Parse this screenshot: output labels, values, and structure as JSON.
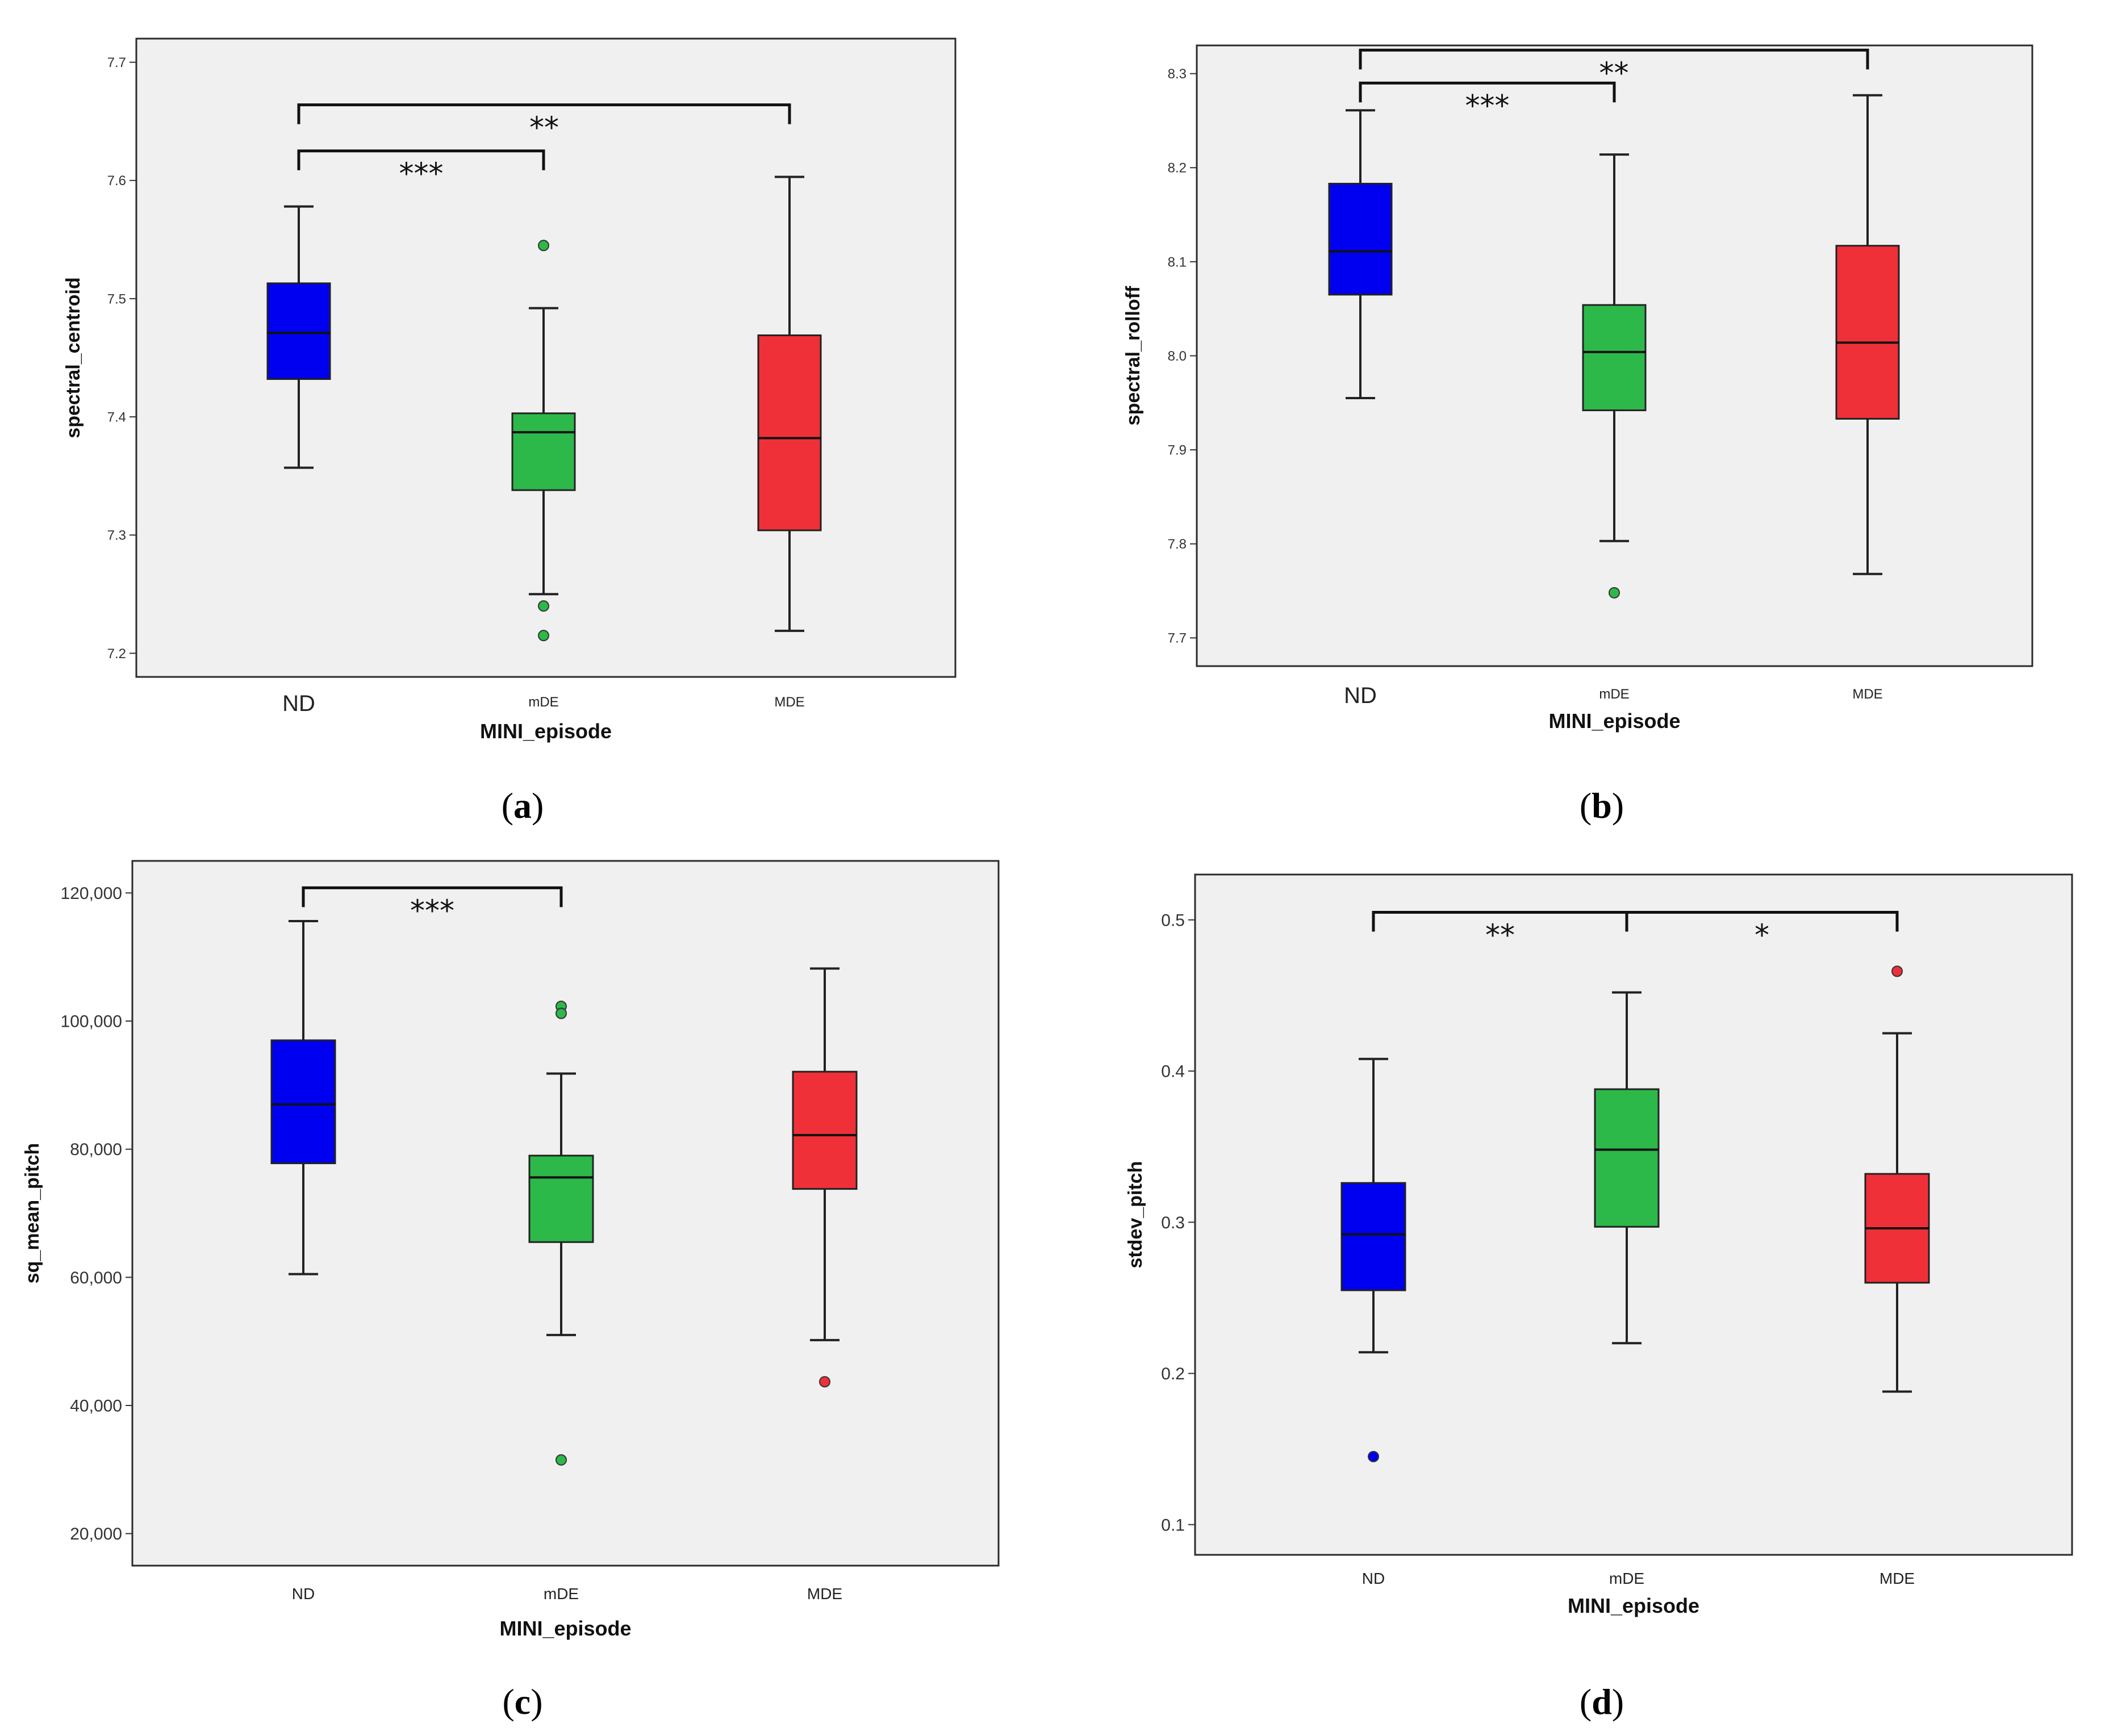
{
  "colors": {
    "ND": "#0000f0",
    "mDE": "#2db84a",
    "MDE": "#ef3038",
    "panel_bg": "#f0f0f0"
  },
  "chart_data": [
    {
      "type": "box",
      "caption_letter": "a",
      "caption_open": "(",
      "caption_close": ")",
      "xlabel": "MINI_episode",
      "ylabel": "spectral_centroid",
      "ylim": [
        7.18,
        7.72
      ],
      "yticks": [
        7.2,
        7.3,
        7.4,
        7.5,
        7.6,
        7.7
      ],
      "ytick_labels": [
        "7.2",
        "7.3",
        "7.4",
        "7.5",
        "7.6",
        "7.7"
      ],
      "categories": [
        "ND",
        "mDE",
        "MDE"
      ],
      "boxes": [
        {
          "min": 7.357,
          "q1": 7.432,
          "median": 7.471,
          "q3": 7.513,
          "max": 7.578,
          "outliers": []
        },
        {
          "min": 7.25,
          "q1": 7.338,
          "median": 7.387,
          "q3": 7.403,
          "max": 7.492,
          "outliers": [
            7.545,
            7.24,
            7.215
          ]
        },
        {
          "min": 7.219,
          "q1": 7.304,
          "median": 7.382,
          "q3": 7.469,
          "max": 7.603,
          "outliers": []
        }
      ],
      "brackets": [
        {
          "from": 0,
          "to": 1,
          "y": 7.625,
          "label": "***"
        },
        {
          "from": 0,
          "to": 2,
          "y": 7.664,
          "label": "**"
        }
      ]
    },
    {
      "type": "box",
      "caption_letter": "b",
      "caption_open": "(",
      "caption_close": ")",
      "xlabel": "MINI_episode",
      "ylabel": "spectral_rolloff",
      "ylim": [
        7.67,
        8.33
      ],
      "yticks": [
        7.7,
        7.8,
        7.9,
        8.0,
        8.1,
        8.2,
        8.3
      ],
      "ytick_labels": [
        "7.7",
        "7.8",
        "7.9",
        "8.0",
        "8.1",
        "8.2",
        "8.3"
      ],
      "categories": [
        "ND",
        "mDE",
        "MDE"
      ],
      "boxes": [
        {
          "min": 7.955,
          "q1": 8.065,
          "median": 8.111,
          "q3": 8.183,
          "max": 8.261,
          "outliers": []
        },
        {
          "min": 7.803,
          "q1": 7.942,
          "median": 8.004,
          "q3": 8.054,
          "max": 8.214,
          "outliers": [
            7.748
          ]
        },
        {
          "min": 7.768,
          "q1": 7.933,
          "median": 8.014,
          "q3": 8.117,
          "max": 8.277,
          "outliers": []
        }
      ],
      "brackets": [
        {
          "from": 0,
          "to": 1,
          "y": 8.29,
          "label": "***"
        },
        {
          "from": 0,
          "to": 2,
          "y": 8.325,
          "label": "**"
        }
      ]
    },
    {
      "type": "box",
      "caption_letter": "c",
      "caption_open": "(",
      "caption_close": ")",
      "xlabel": "MINI_episode",
      "ylabel": "sq_mean_pitch",
      "ylim": [
        15000,
        125000
      ],
      "yticks": [
        20000,
        40000,
        60000,
        80000,
        100000,
        120000
      ],
      "ytick_labels": [
        "20,000",
        "40,000",
        "60,000",
        "80,000",
        "100,000",
        "120,000"
      ],
      "categories": [
        "ND",
        "mDE",
        "MDE"
      ],
      "boxes": [
        {
          "min": 60500,
          "q1": 77800,
          "median": 87000,
          "q3": 97000,
          "max": 115600,
          "outliers": []
        },
        {
          "min": 51000,
          "q1": 65500,
          "median": 75600,
          "q3": 79000,
          "max": 91800,
          "outliers": [
            102300,
            101200,
            31500
          ]
        },
        {
          "min": 50200,
          "q1": 73800,
          "median": 82200,
          "q3": 92100,
          "max": 108200,
          "outliers": [
            43700
          ]
        }
      ],
      "brackets": [
        {
          "from": 0,
          "to": 1,
          "y": 120800,
          "label": "***"
        }
      ]
    },
    {
      "type": "box",
      "caption_letter": "d",
      "caption_open": "(",
      "caption_close": ")",
      "xlabel": "MINI_episode",
      "ylabel": "stdev_pitch",
      "ylim": [
        0.08,
        0.53
      ],
      "yticks": [
        0.1,
        0.2,
        0.3,
        0.4,
        0.5
      ],
      "ytick_labels": [
        "0.1",
        "0.2",
        "0.3",
        "0.4",
        "0.5"
      ],
      "categories": [
        "ND",
        "mDE",
        "MDE"
      ],
      "boxes": [
        {
          "min": 0.214,
          "q1": 0.255,
          "median": 0.292,
          "q3": 0.326,
          "max": 0.408,
          "outliers": [
            0.145
          ]
        },
        {
          "min": 0.22,
          "q1": 0.297,
          "median": 0.348,
          "q3": 0.388,
          "max": 0.452,
          "outliers": []
        },
        {
          "min": 0.188,
          "q1": 0.26,
          "median": 0.296,
          "q3": 0.332,
          "max": 0.425,
          "outliers": [
            0.466
          ]
        }
      ],
      "brackets": [
        {
          "from": 0,
          "to": 1,
          "y": 0.505,
          "label": "**"
        },
        {
          "from": 1,
          "to": 2,
          "y": 0.505,
          "label": "*"
        }
      ]
    }
  ]
}
